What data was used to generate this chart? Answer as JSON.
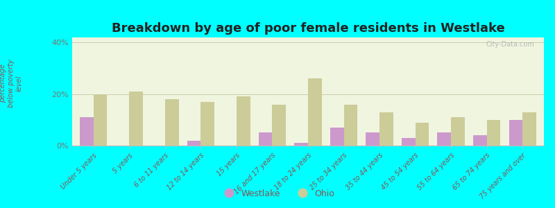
{
  "title": "Breakdown by age of poor female residents in Westlake",
  "ylabel": "percentage\nbelow poverty\nlevel",
  "categories": [
    "Under 5 years",
    "5 years",
    "6 to 11 years",
    "12 to 14 years",
    "15 years",
    "16 and 17 years",
    "18 to 24 years",
    "25 to 34 years",
    "35 to 44 years",
    "45 to 54 years",
    "55 to 64 years",
    "65 to 74 years",
    "75 years and over"
  ],
  "westlake_values": [
    11,
    0,
    0,
    2,
    0,
    5,
    1,
    7,
    5,
    3,
    5,
    4,
    10
  ],
  "ohio_values": [
    20,
    21,
    18,
    17,
    19,
    16,
    26,
    16,
    13,
    9,
    11,
    10,
    13
  ],
  "westlake_color": "#cc99cc",
  "ohio_color": "#cccc99",
  "background_color": "#00ffff",
  "plot_bg": "#f0f5e0",
  "ylim": [
    0,
    42
  ],
  "yticks": [
    0,
    20,
    40
  ],
  "ytick_labels": [
    "0%",
    "20%",
    "40%"
  ],
  "bar_width": 0.38,
  "legend_westlake": "Westlake",
  "legend_ohio": "Ohio",
  "watermark": "City-Data.com"
}
